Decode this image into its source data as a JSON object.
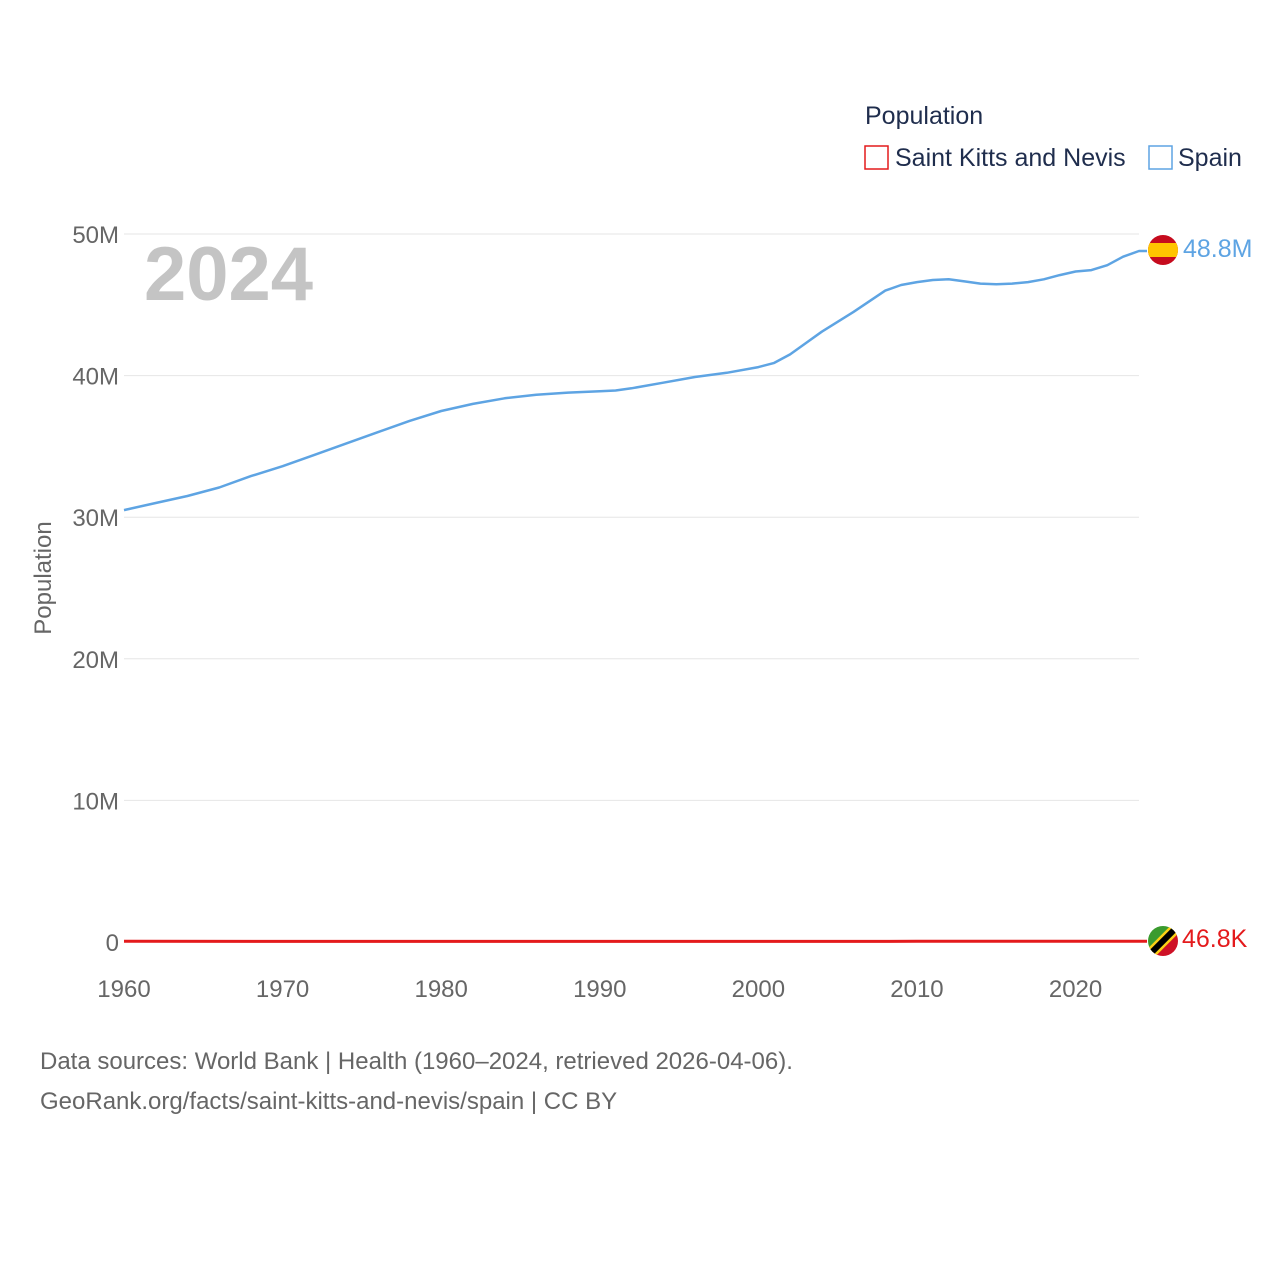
{
  "legend": {
    "title": "Population",
    "items": [
      {
        "name": "Saint Kitts and Nevis",
        "color": "#e41a1c"
      },
      {
        "name": "Spain",
        "color": "#5ea4e3"
      }
    ]
  },
  "watermark_year": "2024",
  "end_labels": {
    "spain": "48.8M",
    "skn": "46.8K"
  },
  "flags": {
    "spain": "spain-flag-icon",
    "skn": "saint-kitts-and-nevis-flag-icon"
  },
  "source": {
    "line1": "Data sources: World Bank | Health (1960–2024, retrieved 2026-04-06).",
    "line2": "GeoRank.org/facts/saint-kitts-and-nevis/spain | CC BY"
  },
  "chart_data": {
    "type": "line",
    "title": "Population",
    "xlabel": "",
    "ylabel": "Population",
    "xlim": [
      1960,
      2024
    ],
    "ylim": [
      0,
      50000000
    ],
    "x_ticks": [
      1960,
      1970,
      1980,
      1990,
      2000,
      2010,
      2020
    ],
    "x_tick_labels": [
      "1960",
      "1970",
      "1980",
      "1990",
      "2000",
      "2010",
      "2020"
    ],
    "y_ticks": [
      0,
      10000000,
      20000000,
      30000000,
      40000000,
      50000000
    ],
    "y_tick_labels": [
      "0",
      "10M",
      "20M",
      "30M",
      "40M",
      "50M"
    ],
    "grid": true,
    "legend_position": "top-right",
    "series": [
      {
        "name": "Spain",
        "color": "#5ea4e3",
        "x": [
          1960,
          1962,
          1964,
          1966,
          1968,
          1970,
          1972,
          1974,
          1976,
          1978,
          1980,
          1982,
          1984,
          1986,
          1988,
          1990,
          1991,
          1992,
          1994,
          1996,
          1998,
          2000,
          2001,
          2002,
          2003,
          2004,
          2006,
          2008,
          2009,
          2010,
          2011,
          2012,
          2013,
          2014,
          2015,
          2016,
          2017,
          2018,
          2019,
          2020,
          2021,
          2022,
          2023,
          2024
        ],
        "values": [
          30500000,
          31000000,
          31500000,
          32100000,
          32900000,
          33600000,
          34400000,
          35200000,
          36000000,
          36800000,
          37500000,
          38000000,
          38400000,
          38650000,
          38800000,
          38900000,
          38950000,
          39100000,
          39500000,
          39900000,
          40200000,
          40600000,
          40900000,
          41500000,
          42300000,
          43100000,
          44500000,
          46000000,
          46400000,
          46600000,
          46750000,
          46800000,
          46650000,
          46500000,
          46450000,
          46500000,
          46600000,
          46800000,
          47100000,
          47350000,
          47450000,
          47800000,
          48400000,
          48800000
        ]
      },
      {
        "name": "Saint Kitts and Nevis",
        "color": "#e41a1c",
        "x": [
          1960,
          1970,
          1980,
          1990,
          2000,
          2010,
          2020,
          2024
        ],
        "values": [
          51000,
          45000,
          43000,
          41000,
          45000,
          47000,
          47600,
          46800
        ]
      }
    ]
  }
}
